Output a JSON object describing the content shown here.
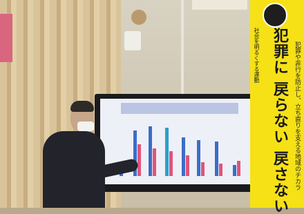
{
  "banner": {
    "main_text": "犯罪に 戻らない 戻さない",
    "top_text": "社会を明るくする運動",
    "side_text": "犯罪や非行を防止し、立ち直りを支える地域のチカラ"
  }
}
